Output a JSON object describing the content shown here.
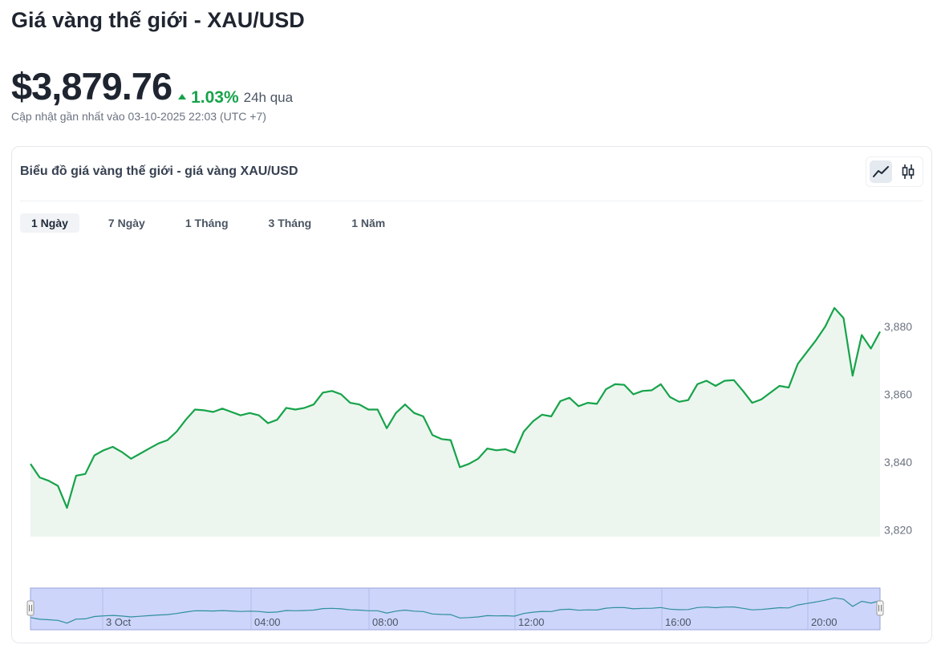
{
  "header": {
    "title": "Giá vàng thế giới - XAU/USD",
    "price": "$3,879.76",
    "change_pct": "1.03%",
    "change_direction": "up",
    "period": "24h qua",
    "updated": "Cập nhật gần nhất vào 03-10-2025 22:03 (UTC +7)"
  },
  "card": {
    "title": "Biểu đồ giá vàng thế giới - giá vàng XAU/USD",
    "chart_types": [
      {
        "icon": "line-chart-icon",
        "active": true
      },
      {
        "icon": "candlestick-icon",
        "active": false
      }
    ],
    "tabs": [
      {
        "label": "1 Ngày",
        "active": true
      },
      {
        "label": "7 Ngày",
        "active": false
      },
      {
        "label": "1 Tháng",
        "active": false
      },
      {
        "label": "3 Tháng",
        "active": false
      },
      {
        "label": "1 Năm",
        "active": false
      }
    ]
  },
  "colors": {
    "up": "#16a34a",
    "line": "#16a34a",
    "area_fill": "#ecf6ee",
    "navigator_fill": "#cdd5fb",
    "navigator_line": "#2f8f9d"
  },
  "chart_data": {
    "type": "area",
    "y_ticks": [
      3820,
      3840,
      3860,
      3880
    ],
    "ylim": [
      3818,
      3889
    ],
    "navigator_labels": [
      "3 Oct",
      "04:00",
      "08:00",
      "12:00",
      "16:00",
      "20:00"
    ],
    "series": [
      {
        "values": [
          3839.5,
          3835.5,
          3834.5,
          3833,
          3826.5,
          3836,
          3836.5,
          3842,
          3843.5,
          3844.5,
          3843,
          3841,
          3842.5,
          3844,
          3845.5,
          3846.5,
          3849,
          3852.5,
          3855.5,
          3855.3,
          3854.8,
          3855.8,
          3854.8,
          3853.8,
          3854.5,
          3853.8,
          3851.5,
          3852.5,
          3856,
          3855.5,
          3856,
          3857,
          3860.5,
          3861,
          3860,
          3857.5,
          3857,
          3855.5,
          3855.5,
          3850,
          3854.5,
          3857,
          3854.5,
          3853.5,
          3848,
          3846.8,
          3846.5,
          3838.5,
          3839.5,
          3841,
          3844,
          3843.5,
          3843.8,
          3842.8,
          3849,
          3852,
          3854,
          3853.5,
          3858,
          3859,
          3856.5,
          3857.5,
          3857.2,
          3861.5,
          3863,
          3862.8,
          3860,
          3861,
          3861.2,
          3863,
          3859.2,
          3857.8,
          3858.3,
          3863,
          3864,
          3862.5,
          3864,
          3864.2,
          3861,
          3857.5,
          3858.5,
          3860.5,
          3862.5,
          3862,
          3869,
          3872.5,
          3876,
          3880,
          3885.5,
          3882.5,
          3865.5,
          3877.5,
          3873.5,
          3878.5
        ]
      }
    ]
  }
}
